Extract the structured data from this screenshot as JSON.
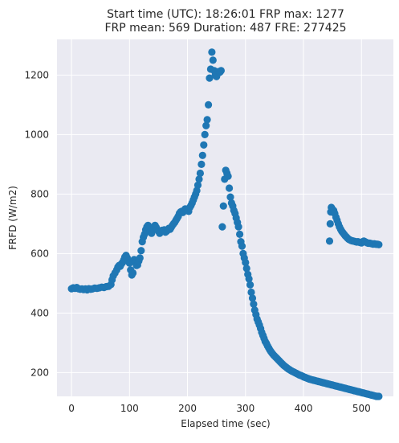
{
  "chart_data": {
    "type": "scatter",
    "title_lines": [
      "Start time (UTC): 18:26:01 FRP max: 1277",
      "FRP mean: 569 Duration: 487 FRE: 277425"
    ],
    "xlabel": "Elapsed time (sec)",
    "ylabel": "FRFD (W/m2)",
    "xlim": [
      -25,
      555
    ],
    "ylim": [
      120,
      1320
    ],
    "xticks": [
      0,
      100,
      200,
      300,
      400,
      500
    ],
    "yticks": [
      200,
      400,
      600,
      800,
      1000,
      1200
    ],
    "grid": true,
    "colors": {
      "background": "#eaeaf2",
      "grid": "#ffffff",
      "marker": "#1f77b4"
    },
    "series": [
      {
        "points": [
          [
            0,
            482
          ],
          [
            3,
            485
          ],
          [
            6,
            483
          ],
          [
            9,
            486
          ],
          [
            12,
            482
          ],
          [
            15,
            480
          ],
          [
            18,
            481
          ],
          [
            21,
            479
          ],
          [
            24,
            481
          ],
          [
            27,
            478
          ],
          [
            30,
            482
          ],
          [
            33,
            480
          ],
          [
            36,
            481
          ],
          [
            40,
            484
          ],
          [
            44,
            483
          ],
          [
            48,
            485
          ],
          [
            52,
            487
          ],
          [
            56,
            486
          ],
          [
            60,
            489
          ],
          [
            64,
            490
          ],
          [
            68,
            496
          ],
          [
            70,
            512
          ],
          [
            72,
            525
          ],
          [
            75,
            535
          ],
          [
            78,
            545
          ],
          [
            80,
            555
          ],
          [
            82,
            560
          ],
          [
            84,
            557
          ],
          [
            86,
            565
          ],
          [
            88,
            570
          ],
          [
            90,
            578
          ],
          [
            92,
            588
          ],
          [
            94,
            594
          ],
          [
            96,
            586
          ],
          [
            98,
            575
          ],
          [
            100,
            568
          ],
          [
            102,
            545
          ],
          [
            104,
            528
          ],
          [
            106,
            535
          ],
          [
            108,
            580
          ],
          [
            110,
            570
          ],
          [
            112,
            560
          ],
          [
            114,
            562
          ],
          [
            116,
            575
          ],
          [
            118,
            585
          ],
          [
            120,
            610
          ],
          [
            122,
            640
          ],
          [
            124,
            655
          ],
          [
            126,
            665
          ],
          [
            128,
            680
          ],
          [
            130,
            690
          ],
          [
            132,
            695
          ],
          [
            134,
            688
          ],
          [
            136,
            675
          ],
          [
            138,
            668
          ],
          [
            140,
            685
          ],
          [
            142,
            690
          ],
          [
            144,
            695
          ],
          [
            146,
            688
          ],
          [
            148,
            680
          ],
          [
            150,
            675
          ],
          [
            152,
            668
          ],
          [
            154,
            672
          ],
          [
            156,
            678
          ],
          [
            158,
            676
          ],
          [
            160,
            680
          ],
          [
            162,
            672
          ],
          [
            164,
            675
          ],
          [
            166,
            680
          ],
          [
            168,
            685
          ],
          [
            170,
            682
          ],
          [
            172,
            688
          ],
          [
            174,
            695
          ],
          [
            176,
            700
          ],
          [
            178,
            705
          ],
          [
            180,
            712
          ],
          [
            182,
            718
          ],
          [
            184,
            725
          ],
          [
            186,
            735
          ],
          [
            188,
            740
          ],
          [
            190,
            742
          ],
          [
            192,
            738
          ],
          [
            194,
            745
          ],
          [
            196,
            750
          ],
          [
            198,
            748
          ],
          [
            200,
            748
          ],
          [
            202,
            742
          ],
          [
            204,
            755
          ],
          [
            206,
            762
          ],
          [
            208,
            770
          ],
          [
            210,
            780
          ],
          [
            212,
            790
          ],
          [
            214,
            800
          ],
          [
            216,
            812
          ],
          [
            218,
            830
          ],
          [
            220,
            850
          ],
          [
            222,
            870
          ],
          [
            224,
            900
          ],
          [
            226,
            930
          ],
          [
            228,
            965
          ],
          [
            230,
            1000
          ],
          [
            232,
            1030
          ],
          [
            234,
            1050
          ],
          [
            236,
            1100
          ],
          [
            238,
            1190
          ],
          [
            240,
            1220
          ],
          [
            242,
            1277
          ],
          [
            244,
            1250
          ],
          [
            246,
            1215
          ],
          [
            248,
            1200
          ],
          [
            250,
            1195
          ],
          [
            252,
            1205
          ],
          [
            254,
            1212
          ],
          [
            256,
            1210
          ],
          [
            258,
            1215
          ],
          [
            260,
            690
          ],
          [
            262,
            760
          ],
          [
            264,
            850
          ],
          [
            266,
            880
          ],
          [
            268,
            870
          ],
          [
            270,
            860
          ],
          [
            272,
            820
          ],
          [
            274,
            790
          ],
          [
            276,
            770
          ],
          [
            278,
            760
          ],
          [
            280,
            745
          ],
          [
            282,
            735
          ],
          [
            284,
            720
          ],
          [
            286,
            705
          ],
          [
            288,
            690
          ],
          [
            290,
            665
          ],
          [
            292,
            640
          ],
          [
            294,
            625
          ],
          [
            296,
            600
          ],
          [
            298,
            585
          ],
          [
            300,
            570
          ],
          [
            302,
            550
          ],
          [
            304,
            530
          ],
          [
            306,
            515
          ],
          [
            308,
            495
          ],
          [
            310,
            470
          ],
          [
            312,
            450
          ],
          [
            314,
            430
          ],
          [
            316,
            410
          ],
          [
            318,
            395
          ],
          [
            320,
            380
          ],
          [
            322,
            370
          ],
          [
            324,
            360
          ],
          [
            326,
            348
          ],
          [
            328,
            335
          ],
          [
            330,
            325
          ],
          [
            332,
            315
          ],
          [
            334,
            305
          ],
          [
            336,
            298
          ],
          [
            338,
            290
          ],
          [
            340,
            283
          ],
          [
            342,
            276
          ],
          [
            344,
            270
          ],
          [
            346,
            265
          ],
          [
            348,
            260
          ],
          [
            350,
            256
          ],
          [
            352,
            252
          ],
          [
            354,
            248
          ],
          [
            356,
            244
          ],
          [
            358,
            240
          ],
          [
            360,
            236
          ],
          [
            362,
            232
          ],
          [
            364,
            228
          ],
          [
            366,
            224
          ],
          [
            368,
            221
          ],
          [
            370,
            218
          ],
          [
            372,
            215
          ],
          [
            374,
            212
          ],
          [
            376,
            210
          ],
          [
            378,
            207
          ],
          [
            380,
            205
          ],
          [
            382,
            203
          ],
          [
            384,
            201
          ],
          [
            386,
            199
          ],
          [
            388,
            197
          ],
          [
            390,
            195
          ],
          [
            392,
            193
          ],
          [
            394,
            191
          ],
          [
            396,
            190
          ],
          [
            398,
            188
          ],
          [
            400,
            186
          ],
          [
            402,
            184
          ],
          [
            404,
            183
          ],
          [
            406,
            181
          ],
          [
            408,
            180
          ],
          [
            410,
            178
          ],
          [
            412,
            177
          ],
          [
            414,
            176
          ],
          [
            416,
            175
          ],
          [
            418,
            174
          ],
          [
            420,
            173
          ],
          [
            422,
            172
          ],
          [
            424,
            171
          ],
          [
            426,
            170
          ],
          [
            428,
            169
          ],
          [
            430,
            168
          ],
          [
            432,
            167
          ],
          [
            434,
            166
          ],
          [
            436,
            165
          ],
          [
            438,
            164
          ],
          [
            440,
            163
          ],
          [
            442,
            162
          ],
          [
            444,
            161
          ],
          [
            446,
            160
          ],
          [
            448,
            159
          ],
          [
            450,
            158
          ],
          [
            452,
            157
          ],
          [
            454,
            156
          ],
          [
            456,
            155
          ],
          [
            458,
            154
          ],
          [
            460,
            153
          ],
          [
            462,
            152
          ],
          [
            464,
            151
          ],
          [
            466,
            150
          ],
          [
            468,
            149
          ],
          [
            470,
            148
          ],
          [
            472,
            147
          ],
          [
            474,
            146
          ],
          [
            476,
            145
          ],
          [
            478,
            144
          ],
          [
            480,
            143
          ],
          [
            482,
            142
          ],
          [
            484,
            141
          ],
          [
            486,
            140
          ],
          [
            488,
            139
          ],
          [
            490,
            138
          ],
          [
            492,
            137
          ],
          [
            494,
            136
          ],
          [
            496,
            135
          ],
          [
            498,
            134
          ],
          [
            500,
            133
          ],
          [
            502,
            132
          ],
          [
            504,
            131
          ],
          [
            506,
            130
          ],
          [
            508,
            129
          ],
          [
            510,
            128
          ],
          [
            512,
            127
          ],
          [
            514,
            126
          ],
          [
            516,
            125
          ],
          [
            518,
            124
          ],
          [
            520,
            123
          ],
          [
            522,
            122
          ],
          [
            524,
            121
          ],
          [
            526,
            120
          ],
          [
            528,
            120
          ],
          [
            530,
            120
          ],
          [
            445,
            642
          ],
          [
            446,
            700
          ],
          [
            447,
            740
          ],
          [
            448,
            755
          ],
          [
            449,
            752
          ],
          [
            450,
            748
          ],
          [
            452,
            745
          ],
          [
            454,
            735
          ],
          [
            456,
            722
          ],
          [
            458,
            712
          ],
          [
            460,
            700
          ],
          [
            462,
            690
          ],
          [
            464,
            682
          ],
          [
            466,
            675
          ],
          [
            468,
            670
          ],
          [
            470,
            665
          ],
          [
            472,
            660
          ],
          [
            474,
            656
          ],
          [
            476,
            652
          ],
          [
            478,
            648
          ],
          [
            480,
            646
          ],
          [
            482,
            644
          ],
          [
            484,
            643
          ],
          [
            486,
            642
          ],
          [
            488,
            641
          ],
          [
            490,
            640
          ],
          [
            492,
            639
          ],
          [
            494,
            640
          ],
          [
            496,
            638
          ],
          [
            498,
            637
          ],
          [
            500,
            636
          ],
          [
            502,
            640
          ],
          [
            504,
            642
          ],
          [
            506,
            640
          ],
          [
            508,
            638
          ],
          [
            510,
            636
          ],
          [
            512,
            635
          ],
          [
            514,
            635
          ],
          [
            516,
            634
          ],
          [
            518,
            633
          ],
          [
            520,
            632
          ],
          [
            522,
            633
          ],
          [
            524,
            632
          ],
          [
            526,
            631
          ],
          [
            528,
            631
          ],
          [
            530,
            630
          ]
        ]
      }
    ]
  }
}
